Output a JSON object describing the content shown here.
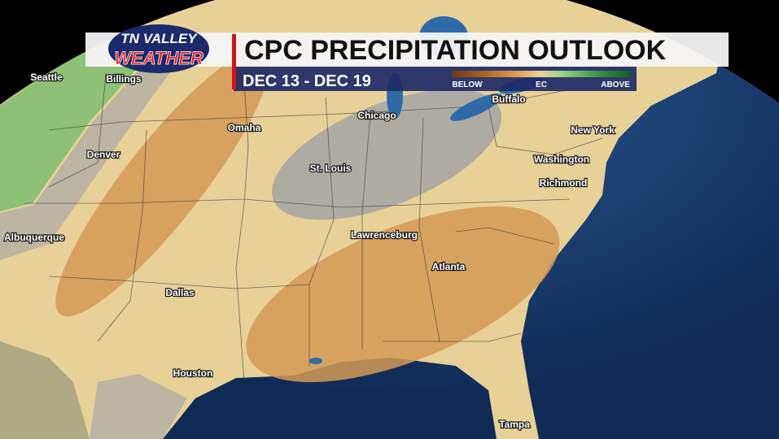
{
  "header": {
    "logo_top": "TN VALLEY",
    "logo_bottom": "WEATHER",
    "title": "CPC PRECIPITATION OUTLOOK",
    "dates": "DEC 13 - DEC 19"
  },
  "legend": {
    "labels": [
      "BELOW",
      "EC",
      "ABOVE"
    ]
  },
  "cities": [
    "Seattle",
    "Billings",
    "Omaha",
    "Denver",
    "Chicago",
    "Buffalo",
    "New York",
    "St. Louis",
    "Washington",
    "Richmond",
    "Albuquerque",
    "Lawrenceburg",
    "Atlanta",
    "Dallas",
    "Houston",
    "Tampa"
  ]
}
